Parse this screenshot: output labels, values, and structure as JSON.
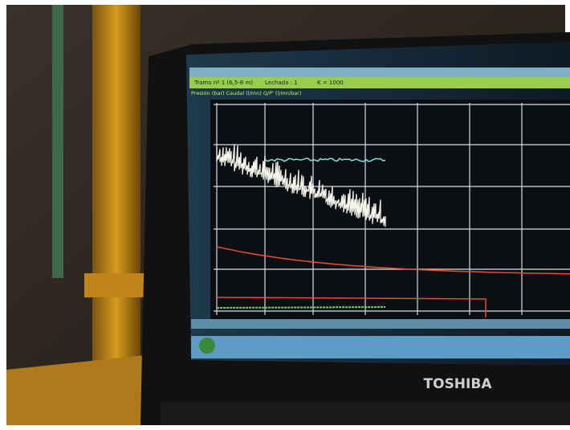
{
  "screen": {
    "toolbar": {
      "section": "Tramo nº 1 (6,5-8 m)",
      "grout": "Lechada : 1",
      "constant": "K = 1000"
    },
    "legend": "Presión (bar) Caudal (l/mn) Q/P' (l/mn/bar)"
  },
  "laptop": {
    "brand": "TOSHIBA"
  }
}
